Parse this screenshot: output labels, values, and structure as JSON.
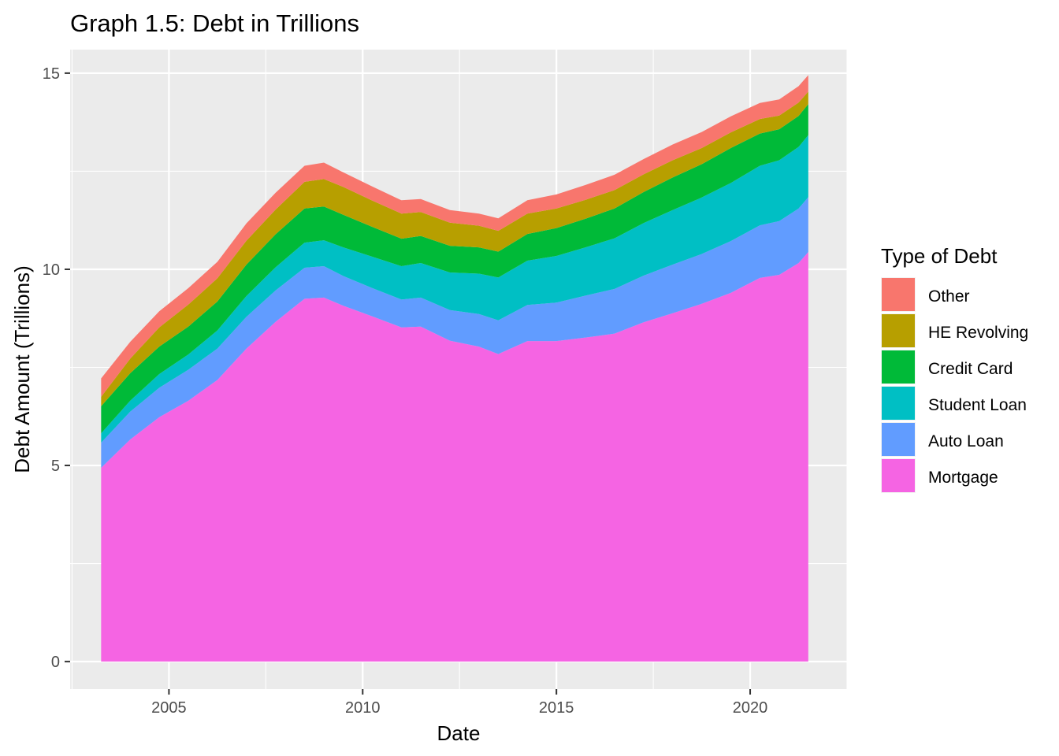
{
  "chart_data": {
    "type": "area",
    "stacked": true,
    "title": "Graph 1.5: Debt in Trillions",
    "xlabel": "Date",
    "ylabel": "Debt Amount (Trillions)",
    "xlim": [
      2002.45,
      2022.5
    ],
    "ylim": [
      -0.7,
      15.6
    ],
    "x_ticks": [
      2005,
      2010,
      2015,
      2020
    ],
    "y_ticks": [
      0,
      5,
      10,
      15
    ],
    "x_tick_labels": [
      "2005",
      "2010",
      "2015",
      "2020"
    ],
    "y_tick_labels": [
      "0",
      "5",
      "10",
      "15"
    ],
    "grid": true,
    "legend": {
      "title": "Type of Debt",
      "position": "right",
      "entries": [
        "Other",
        "HE Revolving",
        "Credit Card",
        "Student Loan",
        "Auto Loan",
        "Mortgage"
      ]
    },
    "x": [
      2003.25,
      2004.0,
      2004.75,
      2005.5,
      2006.25,
      2007.0,
      2007.75,
      2008.5,
      2009.0,
      2009.5,
      2010.25,
      2011.0,
      2011.5,
      2012.25,
      2013.0,
      2013.5,
      2014.25,
      2015.0,
      2015.75,
      2016.5,
      2017.25,
      2018.0,
      2018.75,
      2019.5,
      2020.25,
      2020.75,
      2021.25,
      2021.5
    ],
    "series": [
      {
        "name": "Mortgage",
        "color": "#F564E3",
        "values": [
          4.94,
          5.66,
          6.23,
          6.65,
          7.18,
          7.98,
          8.66,
          9.25,
          9.28,
          9.07,
          8.8,
          8.52,
          8.54,
          8.18,
          8.03,
          7.84,
          8.17,
          8.17,
          8.26,
          8.36,
          8.65,
          8.88,
          9.12,
          9.4,
          9.78,
          9.86,
          10.16,
          10.44
        ]
      },
      {
        "name": "Auto Loan",
        "color": "#619CFF",
        "values": [
          0.64,
          0.71,
          0.75,
          0.79,
          0.8,
          0.81,
          0.8,
          0.79,
          0.8,
          0.76,
          0.72,
          0.71,
          0.74,
          0.78,
          0.83,
          0.86,
          0.92,
          0.98,
          1.07,
          1.14,
          1.19,
          1.24,
          1.27,
          1.32,
          1.34,
          1.37,
          1.39,
          1.4
        ]
      },
      {
        "name": "Student Loan",
        "color": "#00BFC4",
        "values": [
          0.24,
          0.28,
          0.35,
          0.39,
          0.46,
          0.53,
          0.59,
          0.64,
          0.66,
          0.73,
          0.8,
          0.85,
          0.88,
          0.96,
          1.03,
          1.09,
          1.13,
          1.19,
          1.23,
          1.29,
          1.34,
          1.39,
          1.44,
          1.48,
          1.52,
          1.55,
          1.57,
          1.58
        ]
      },
      {
        "name": "Credit Card",
        "color": "#00BA38",
        "values": [
          0.69,
          0.7,
          0.7,
          0.71,
          0.74,
          0.8,
          0.84,
          0.87,
          0.86,
          0.83,
          0.76,
          0.7,
          0.69,
          0.68,
          0.67,
          0.66,
          0.68,
          0.71,
          0.73,
          0.76,
          0.79,
          0.83,
          0.85,
          0.89,
          0.82,
          0.79,
          0.79,
          0.79
        ]
      },
      {
        "name": "HE Revolving",
        "color": "#B79F00",
        "values": [
          0.24,
          0.37,
          0.49,
          0.56,
          0.59,
          0.61,
          0.63,
          0.68,
          0.7,
          0.71,
          0.67,
          0.64,
          0.61,
          0.59,
          0.55,
          0.53,
          0.52,
          0.5,
          0.48,
          0.47,
          0.45,
          0.44,
          0.41,
          0.4,
          0.37,
          0.35,
          0.34,
          0.32
        ]
      },
      {
        "name": "Other",
        "color": "#F8766D",
        "values": [
          0.47,
          0.43,
          0.41,
          0.42,
          0.42,
          0.44,
          0.43,
          0.41,
          0.42,
          0.37,
          0.36,
          0.34,
          0.33,
          0.32,
          0.31,
          0.32,
          0.34,
          0.36,
          0.38,
          0.39,
          0.39,
          0.4,
          0.41,
          0.41,
          0.41,
          0.41,
          0.42,
          0.42
        ]
      }
    ],
    "colors": {
      "panel_background": "#EBEBEB",
      "grid_major": "#FFFFFF",
      "tick_text": "#4D4D4D"
    }
  }
}
